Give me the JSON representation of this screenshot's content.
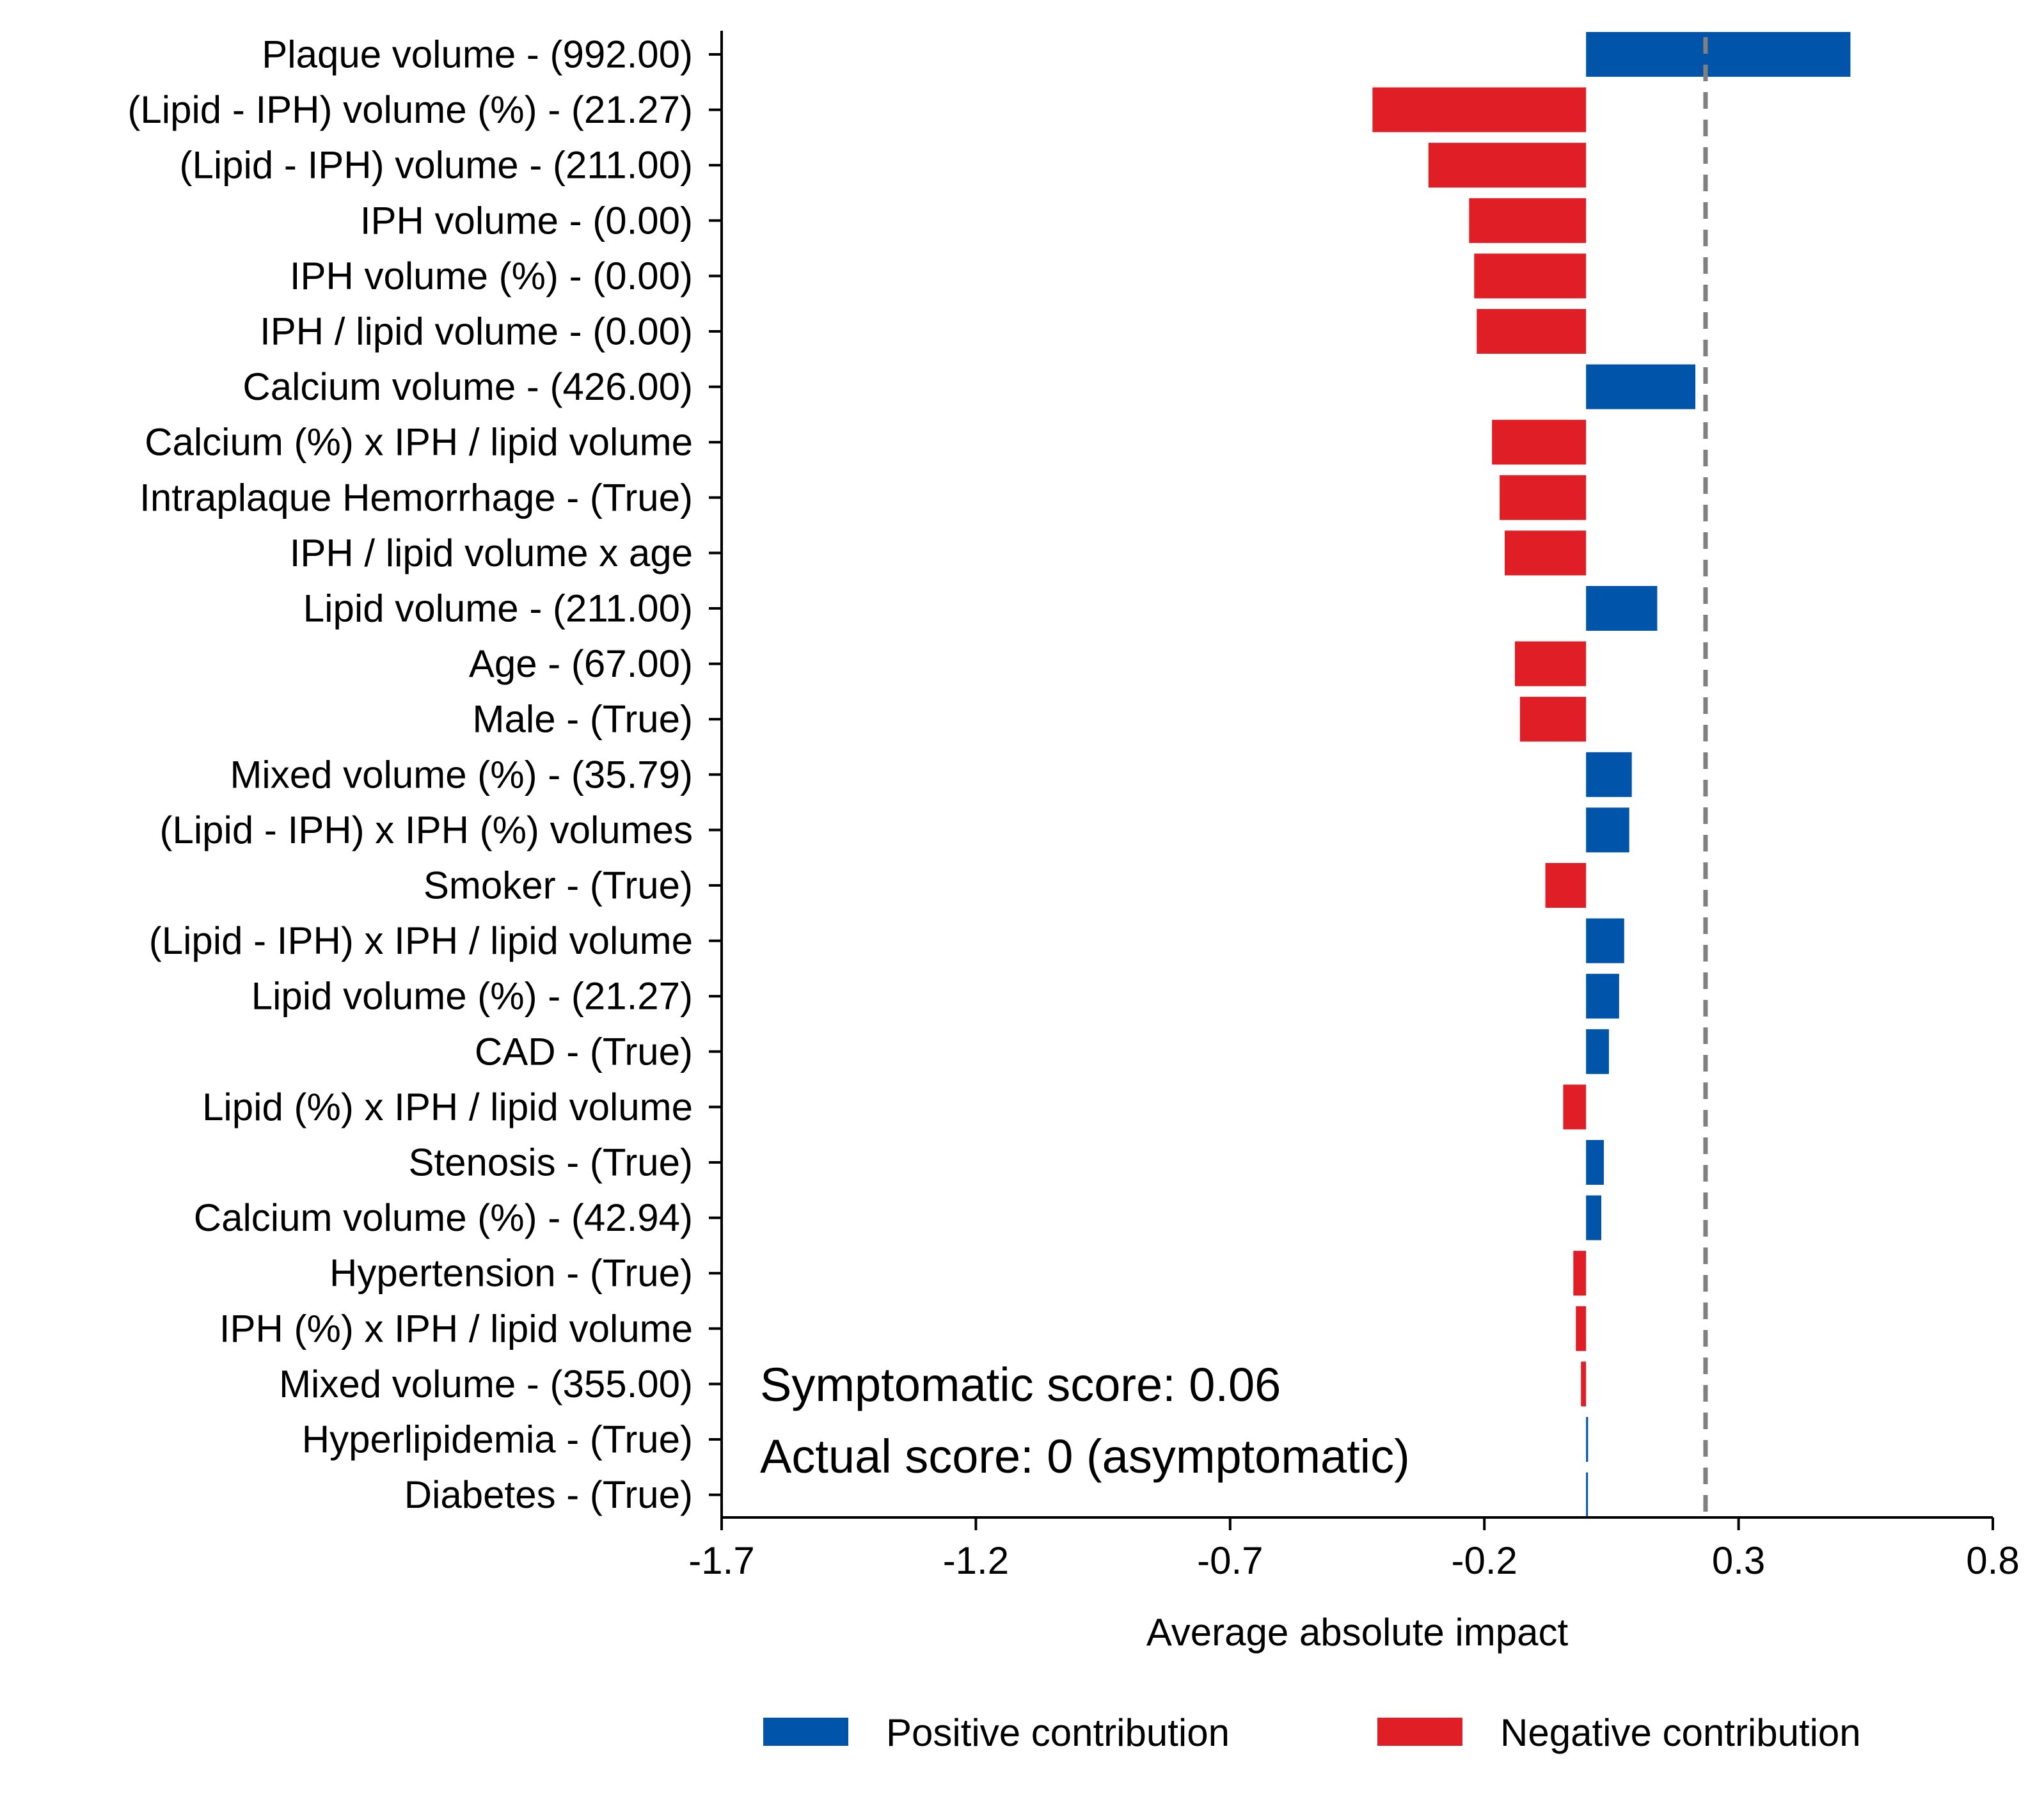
{
  "chart_data": {
    "type": "bar",
    "orientation": "horizontal",
    "xlabel": "Average absolute impact",
    "xlim": [
      -1.7,
      0.8
    ],
    "xticks": [
      -1.7,
      -1.2,
      -0.7,
      -0.2,
      0.3,
      0.8
    ],
    "xtick_labels": [
      "-1.7",
      "-1.2",
      "-0.7",
      "-0.2",
      "0.3",
      "0.8"
    ],
    "baseline": 0.0,
    "reference_line": 0.235,
    "categories": [
      "Plaque volume - (992.00)",
      "(Lipid - IPH) volume (%) - (21.27)",
      "(Lipid - IPH) volume - (211.00)",
      "IPH volume - (0.00)",
      "IPH volume (%) - (0.00)",
      "IPH / lipid volume - (0.00)",
      "Calcium volume - (426.00)",
      "Calcium (%) x IPH / lipid volume",
      "Intraplaque Hemorrhage - (True)",
      "IPH / lipid volume x age",
      "Lipid volume - (211.00)",
      "Age - (67.00)",
      "Male - (True)",
      "Mixed volume (%) - (35.79)",
      "(Lipid - IPH) x IPH (%) volumes",
      "Smoker - (True)",
      "(Lipid - IPH) x IPH / lipid volume",
      "Lipid volume (%) - (21.27)",
      "CAD - (True)",
      "Lipid (%) x IPH / lipid volume",
      "Stenosis - (True)",
      "Calcium volume (%) - (42.94)",
      "Hypertension - (True)",
      "IPH (%) x IPH / lipid volume",
      "Mixed volume - (355.00)",
      "Hyperlipidemia - (True)",
      "Diabetes - (True)"
    ],
    "values": [
      0.52,
      -0.42,
      -0.31,
      -0.23,
      -0.22,
      -0.215,
      0.215,
      -0.185,
      -0.17,
      -0.16,
      0.14,
      -0.14,
      -0.13,
      0.09,
      0.085,
      -0.08,
      0.075,
      0.065,
      0.045,
      -0.045,
      0.035,
      0.03,
      -0.025,
      -0.02,
      -0.01,
      0.004,
      0.003
    ],
    "legend": {
      "placement": "bottom",
      "entries": [
        {
          "name": "Positive contribution",
          "color": "#0055aa"
        },
        {
          "name": "Negative contribution",
          "color": "#e01e25"
        }
      ]
    },
    "annotations": [
      "Symptomatic score: 0.06",
      "Actual score: 0 (asymptomatic)"
    ],
    "colors": {
      "positive": "#0055aa",
      "negative": "#e01e25",
      "reference_line": "#808080"
    },
    "grid": false
  }
}
